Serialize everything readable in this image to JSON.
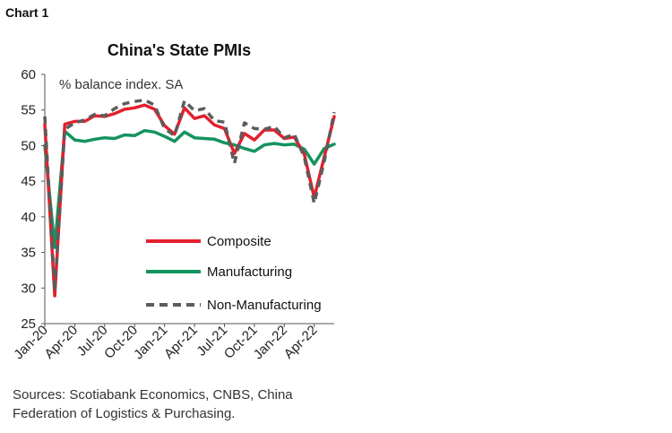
{
  "chart_label": "Chart 1",
  "sources": "Sources: Scotiabank Economics, CNBS, China Federation of Logistics & Purchasing.",
  "colors": {
    "composite": "#e3202e",
    "manufacturing": "#14935e",
    "non_manufacturing": "#5c5c5c",
    "axis": "#555555"
  },
  "chart_data": {
    "type": "line",
    "title": "China's State PMIs",
    "units_label": "% balance index. SA",
    "xlabel": "",
    "ylabel": "",
    "ylim": [
      25,
      60
    ],
    "yticks": [
      25,
      30,
      35,
      40,
      45,
      50,
      55,
      60
    ],
    "grid": false,
    "legend_position": "center",
    "x": [
      "Jan-20",
      "Feb-20",
      "Mar-20",
      "Apr-20",
      "May-20",
      "Jun-20",
      "Jul-20",
      "Aug-20",
      "Sep-20",
      "Oct-20",
      "Nov-20",
      "Dec-20",
      "Jan-21",
      "Feb-21",
      "Mar-21",
      "Apr-21",
      "May-21",
      "Jun-21",
      "Jul-21",
      "Aug-21",
      "Sep-21",
      "Oct-21",
      "Nov-21",
      "Dec-21",
      "Jan-22",
      "Feb-22",
      "Mar-22",
      "Apr-22",
      "May-22",
      "Jun-22"
    ],
    "xtick_labels": [
      "Jan-20",
      "Apr-20",
      "Jul-20",
      "Oct-20",
      "Jan-21",
      "Apr-21",
      "Jul-21",
      "Oct-21",
      "Jan-22",
      "Apr-22"
    ],
    "series": [
      {
        "name": "Composite",
        "key": "composite",
        "style": "solid",
        "values": [
          53.0,
          28.9,
          53.0,
          53.4,
          53.4,
          54.2,
          54.1,
          54.5,
          55.1,
          55.3,
          55.7,
          55.1,
          52.8,
          51.6,
          55.3,
          53.8,
          54.2,
          52.9,
          52.4,
          48.9,
          51.7,
          50.8,
          52.2,
          52.2,
          51.0,
          51.2,
          48.8,
          42.7,
          48.4,
          54.1
        ]
      },
      {
        "name": "Manufacturing",
        "key": "manufacturing",
        "style": "solid",
        "values": [
          50.0,
          35.7,
          52.0,
          50.8,
          50.6,
          50.9,
          51.1,
          51.0,
          51.5,
          51.4,
          52.1,
          51.9,
          51.3,
          50.6,
          51.9,
          51.1,
          51.0,
          50.9,
          50.4,
          50.1,
          49.6,
          49.2,
          50.1,
          50.3,
          50.1,
          50.2,
          49.5,
          47.4,
          49.6,
          50.2
        ]
      },
      {
        "name": "Non-Manufacturing",
        "key": "non_manufacturing",
        "style": "dashed",
        "values": [
          54.1,
          29.6,
          52.3,
          53.2,
          53.6,
          54.4,
          54.2,
          55.2,
          55.9,
          56.2,
          56.4,
          55.7,
          52.4,
          51.4,
          56.3,
          54.9,
          55.2,
          53.5,
          53.3,
          47.5,
          53.2,
          52.4,
          52.3,
          52.7,
          51.1,
          51.6,
          48.4,
          41.9,
          47.8,
          54.7
        ]
      }
    ]
  }
}
